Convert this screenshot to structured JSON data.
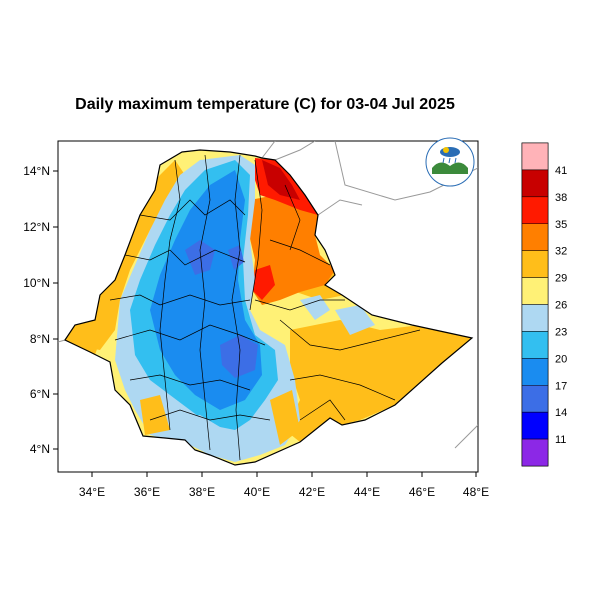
{
  "title": "Daily maximum temperature (C) for 03-04 Jul 2025",
  "map": {
    "region": "Ethiopia",
    "lon_range": [
      33,
      48.2
    ],
    "lat_range": [
      3.2,
      15
    ],
    "x_ticks": [
      "34°E",
      "36°E",
      "38°E",
      "40°E",
      "42°E",
      "44°E",
      "46°E",
      "48°E"
    ],
    "y_ticks": [
      "4°N",
      "6°N",
      "8°N",
      "10°N",
      "12°N",
      "14°N"
    ],
    "logo_icon": "ethiopian-meteorology-institute-logo"
  },
  "colorbar": {
    "labels": [
      "41",
      "38",
      "35",
      "32",
      "29",
      "26",
      "23",
      "20",
      "17",
      "14",
      "11"
    ],
    "colors": [
      "#ffb3b8",
      "#c80000",
      "#ff1a00",
      "#ff7f00",
      "#ffbe1a",
      "#fff176",
      "#aed8f2",
      "#33bff0",
      "#1a8cf0",
      "#3c6ee6",
      "#0000ff",
      "#8c28e6"
    ]
  },
  "legend_colors": {
    "very_hot": "#c80000",
    "hot": "#ff7f00",
    "warm": "#ffbe1a",
    "mild": "#fff176",
    "cool": "#aed8f2",
    "cold": "#1a8cf0"
  }
}
